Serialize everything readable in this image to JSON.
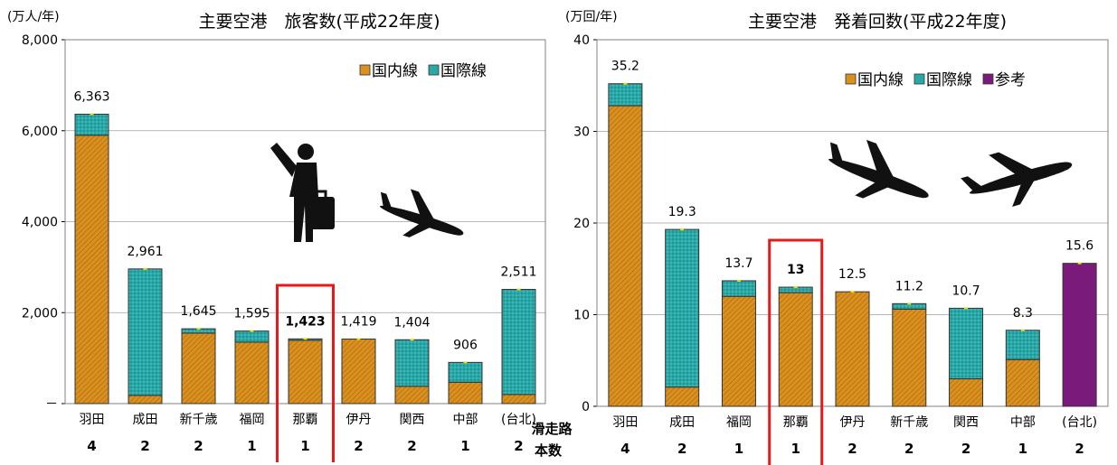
{
  "colors": {
    "domestic": "#d9901f",
    "international": "#2aa8a8",
    "reference": "#7a1a7a",
    "highlight": "#e8191b",
    "grid": "#a0a0a0"
  },
  "chart_data": [
    {
      "type": "bar",
      "stacked": true,
      "title": "主要空港　旅客数(平成22年度)",
      "unit_label": "(万人/年)",
      "ylim": [
        0,
        8000
      ],
      "yticks": [
        0,
        2000,
        4000,
        6000,
        8000
      ],
      "ytick_labels": [
        "－",
        "2,000",
        "4,000",
        "6,000",
        "8,000"
      ],
      "categories": [
        "羽田",
        "成田",
        "新千歳",
        "福岡",
        "那覇",
        "伊丹",
        "関西",
        "中部",
        "(台北)"
      ],
      "series": [
        {
          "name": "国内線",
          "values": [
            5900,
            180,
            1550,
            1350,
            1390,
            1419,
            380,
            470,
            200
          ]
        },
        {
          "name": "国際線",
          "values": [
            463,
            2781,
            95,
            245,
            33,
            0,
            1024,
            436,
            2311
          ]
        }
      ],
      "totals": [
        "6,363",
        "2,961",
        "1,645",
        "1,595",
        "1,423",
        "1,419",
        "1,404",
        "906",
        "2,511"
      ],
      "highlight_index": 4,
      "runways": [
        "4",
        "2",
        "2",
        "1",
        "1",
        "2",
        "2",
        "1",
        "2"
      ],
      "legend": {
        "position": "top-right",
        "items": [
          "国内線",
          "国際線"
        ]
      },
      "grid": true
    },
    {
      "type": "bar",
      "stacked": true,
      "title": "主要空港　発着回数(平成22年度)",
      "unit_label": "(万回/年)",
      "ylim": [
        0,
        40
      ],
      "yticks": [
        0,
        10,
        20,
        30,
        40
      ],
      "ytick_labels": [
        "0",
        "10",
        "20",
        "30",
        "40"
      ],
      "categories": [
        "羽田",
        "成田",
        "福岡",
        "那覇",
        "伊丹",
        "新千歳",
        "関西",
        "中部",
        "(台北)"
      ],
      "series": [
        {
          "name": "国内線",
          "values": [
            32.8,
            2.1,
            12.0,
            12.4,
            12.5,
            10.6,
            3.0,
            5.1,
            0
          ]
        },
        {
          "name": "国際線",
          "values": [
            2.4,
            17.2,
            1.7,
            0.6,
            0,
            0.6,
            7.7,
            3.2,
            0
          ]
        },
        {
          "name": "参考",
          "values": [
            0,
            0,
            0,
            0,
            0,
            0,
            0,
            0,
            15.6
          ]
        }
      ],
      "totals": [
        "35.2",
        "19.3",
        "13.7",
        "13",
        "12.5",
        "11.2",
        "10.7",
        "8.3",
        "15.6"
      ],
      "highlight_index": 3,
      "runway_header": [
        "滑走路",
        "本数"
      ],
      "runways": [
        "4",
        "2",
        "1",
        "1",
        "2",
        "2",
        "2",
        "1",
        "2"
      ],
      "legend": {
        "position": "top-right",
        "items": [
          "国内線",
          "国際線",
          "参考"
        ]
      },
      "grid": true
    }
  ],
  "icons": [
    "traveler-icon",
    "airplane-landing-icon",
    "airplane-descending-icon",
    "airplane-ascending-icon"
  ]
}
